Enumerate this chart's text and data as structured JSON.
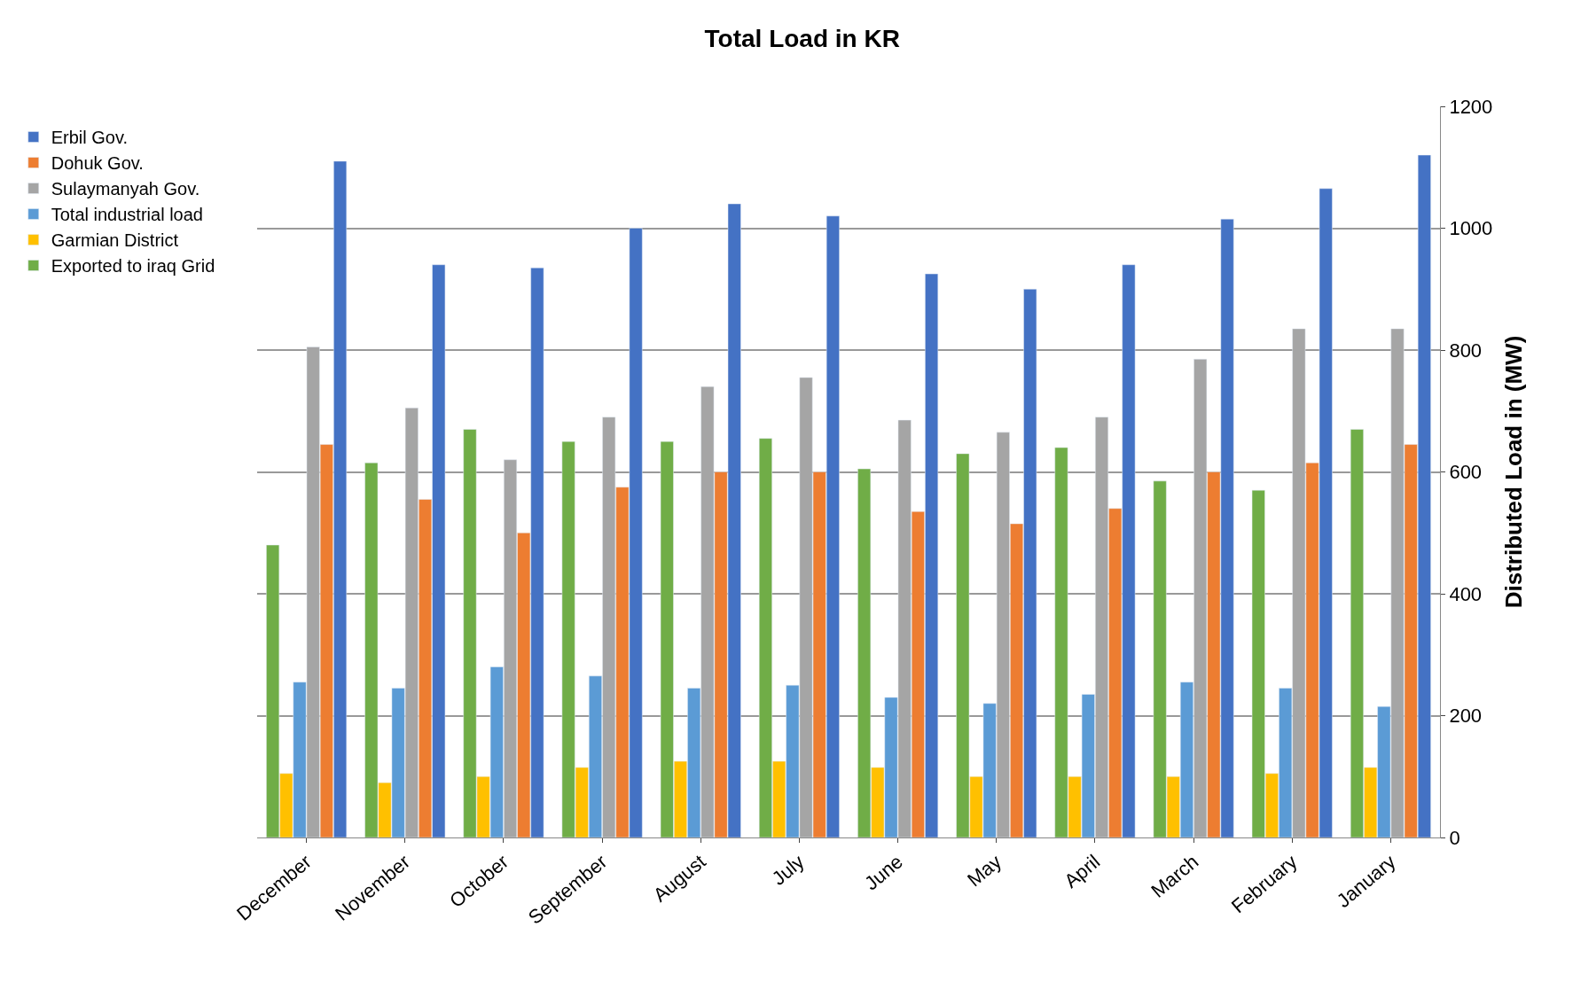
{
  "chart_data": {
    "type": "bar",
    "title": "Total Load in KR",
    "ylabel": "Distributed Load in (MW)",
    "categories": [
      "December",
      "November",
      "October",
      "September",
      "August",
      "July",
      "June",
      "May",
      "April",
      "March",
      "February",
      "January"
    ],
    "series": [
      {
        "name": "Exported to iraq Grid",
        "color": "#70ad47",
        "values": [
          480,
          615,
          670,
          650,
          650,
          655,
          605,
          630,
          640,
          585,
          570,
          670
        ]
      },
      {
        "name": "Garmian District",
        "color": "#ffc000",
        "values": [
          105,
          90,
          100,
          115,
          125,
          125,
          115,
          100,
          100,
          100,
          105,
          115
        ]
      },
      {
        "name": "Total industrial load",
        "color": "#5b9bd5",
        "values": [
          255,
          245,
          280,
          265,
          245,
          250,
          230,
          220,
          235,
          255,
          245,
          215
        ]
      },
      {
        "name": "Sulaymanyah Gov.",
        "color": "#a5a5a5",
        "values": [
          805,
          705,
          620,
          690,
          740,
          755,
          685,
          665,
          690,
          785,
          835,
          835
        ]
      },
      {
        "name": "Dohuk Gov.",
        "color": "#ed7d31",
        "values": [
          645,
          555,
          500,
          575,
          600,
          600,
          535,
          515,
          540,
          600,
          615,
          645
        ]
      },
      {
        "name": "Erbil Gov.",
        "color": "#4472c4",
        "values": [
          1110,
          940,
          935,
          1000,
          1040,
          1020,
          925,
          900,
          940,
          1015,
          1065,
          1120
        ]
      }
    ],
    "ylim": [
      0,
      1200
    ],
    "yticks": [
      0,
      200,
      400,
      600,
      800,
      1000,
      1200
    ],
    "grid": "y",
    "legend": "left"
  }
}
